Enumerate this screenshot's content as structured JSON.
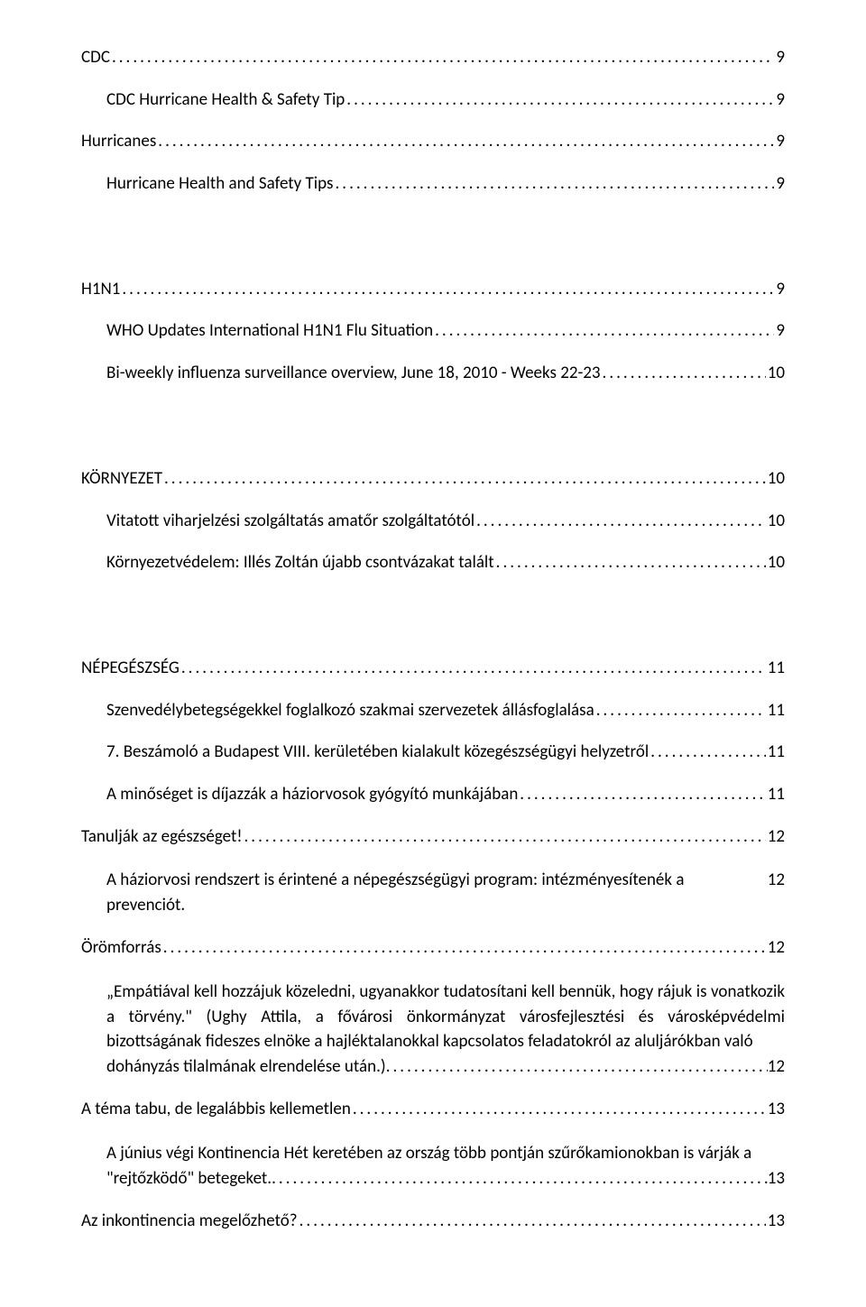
{
  "colors": {
    "text": "#000000",
    "background": "#ffffff"
  },
  "font": {
    "family": "Calibri",
    "size_body_pt": 11
  },
  "toc": {
    "entries": [
      {
        "level": 0,
        "title": "CDC",
        "page": "9",
        "gap_before": false
      },
      {
        "level": 1,
        "title": "CDC Hurricane Health & Safety Tip",
        "page": "9"
      },
      {
        "level": 0,
        "title": "Hurricanes",
        "page": "9"
      },
      {
        "level": 1,
        "title": "Hurricane Health and Safety Tips",
        "page": "9"
      },
      {
        "level": 0,
        "title": "H1N1",
        "page": "9",
        "gap_before": true
      },
      {
        "level": 1,
        "title": "WHO Updates International H1N1 Flu Situation",
        "page": "9"
      },
      {
        "level": 1,
        "title": "Bi-weekly influenza surveillance overview, June 18, 2010 - Weeks 22-23",
        "page": "10"
      },
      {
        "level": 0,
        "title": "KÖRNYEZET",
        "page": "10",
        "gap_before": true
      },
      {
        "level": 1,
        "title": "Vitatott viharjelzési szolgáltatás amatőr szolgáltatótól",
        "page": "10"
      },
      {
        "level": 1,
        "title": "Környezetvédelem: Illés Zoltán újabb csontvázakat talált",
        "page": "10"
      },
      {
        "level": 0,
        "title": "NÉPEGÉSZSÉG",
        "page": "11",
        "gap_before": true
      },
      {
        "level": 1,
        "title": "Szenvedélybetegségekkel foglalkozó szakmai szervezetek állásfoglalása",
        "page": "11"
      },
      {
        "level": 1,
        "title": "7. Beszámoló a Budapest VIII. kerületében kialakult közegészségügyi helyzetről",
        "page": "11"
      },
      {
        "level": 1,
        "title": "A minőséget is díjazzák a háziorvosok gyógyító munkájában",
        "page": "11"
      },
      {
        "level": 0,
        "title": "Tanulják az egészséget!",
        "page": "12"
      },
      {
        "level": 2,
        "title_nodots": "A háziorvosi rendszert is érintené a népegészségügyi program: intézményesítenék a prevenciót.",
        "page": "12"
      },
      {
        "level": 0,
        "title": "Örömforrás",
        "page": "12"
      },
      {
        "level": 2,
        "multiline_prefix": "„Empátiával kell hozzájuk közeledni, ugyanakkor tudatosítani kell bennük, hogy rájuk is vonatkozik a törvény.\" (Ughy Attila, a fővárosi önkormányzat városfejlesztési és városképvédelmi bizottságának fideszes elnöke a hajléktalanokkal kapcsolatos feladatokról az aluljárókban való",
        "multiline_last": "dohányzás tilalmának elrendelése után.)",
        "page": "12"
      },
      {
        "level": 0,
        "title": "A téma tabu, de legalábbis kellemetlen",
        "page": "13"
      },
      {
        "level": 2,
        "multiline_prefix": "A június végi Kontinencia Hét keretében az ország több pontján szűrőkamionokban is várják a",
        "multiline_last": "\"rejtőzködő\" betegeket.",
        "page": "13"
      },
      {
        "level": 0,
        "title": "Az inkontinencia megelőzhető?",
        "page": "13"
      }
    ]
  }
}
